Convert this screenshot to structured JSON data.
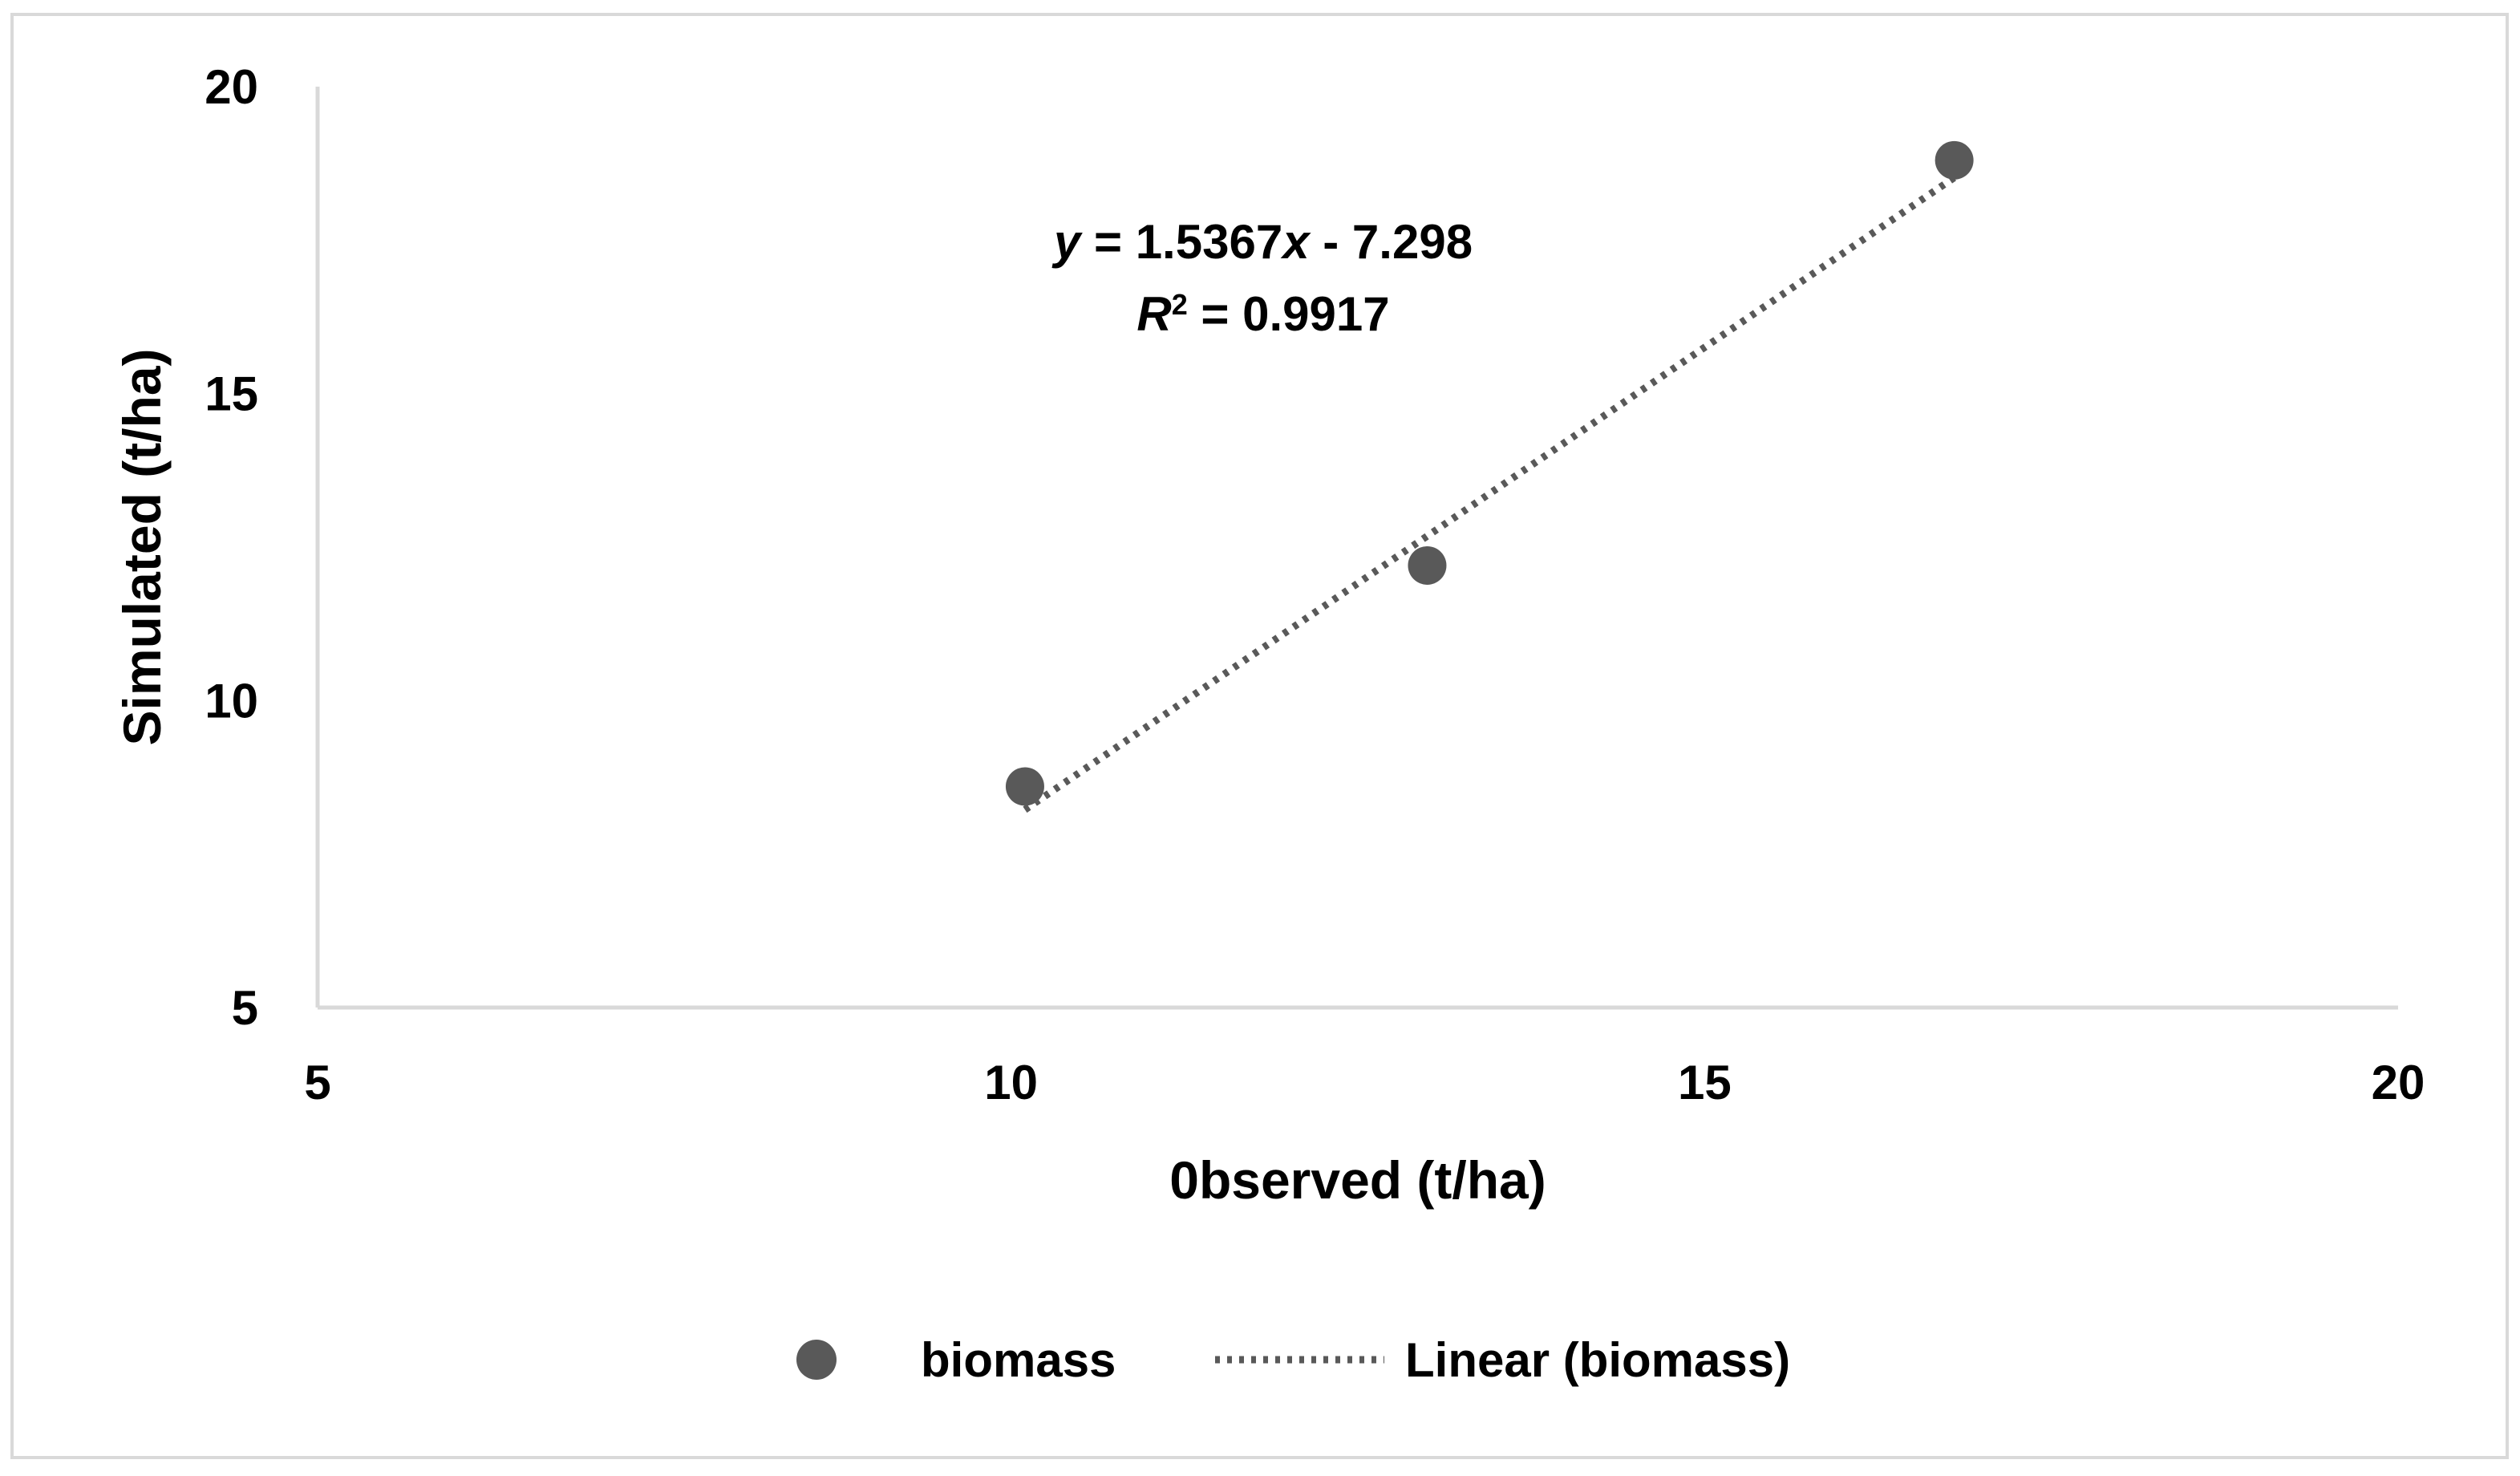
{
  "chart_data": {
    "type": "scatter",
    "title": "",
    "xlabel": "0bserved (t/ha)",
    "ylabel": "Simulated (t/ha)",
    "xlim": [
      5,
      20
    ],
    "ylim": [
      5,
      20
    ],
    "x_ticks": [
      5,
      10,
      15,
      20
    ],
    "y_ticks": [
      5,
      10,
      15,
      20
    ],
    "x_tick_labels": [
      "5",
      "10",
      "15",
      "20"
    ],
    "y_tick_labels": [
      "5",
      "10",
      "15",
      "20"
    ],
    "grid": false,
    "series": [
      {
        "name": "biomass",
        "x": [
          10.1,
          13.0,
          16.8
        ],
        "y": [
          8.6,
          12.2,
          18.8
        ],
        "color": "#595959"
      }
    ],
    "trendline": {
      "name": "Linear (biomass)",
      "type": "linear",
      "slope": 1.5367,
      "intercept": -7.298,
      "r_squared": 0.9917,
      "x_range": [
        10.1,
        16.8
      ],
      "color": "#595959"
    },
    "annotation": {
      "equation_parts": [
        "y",
        " = 1.5367",
        "x",
        " - 7.298"
      ],
      "r2_parts": [
        "R",
        "2",
        " = 0.9917"
      ]
    },
    "legend": {
      "position": "bottom",
      "entries": [
        "biomass",
        "Linear (biomass)"
      ]
    }
  }
}
